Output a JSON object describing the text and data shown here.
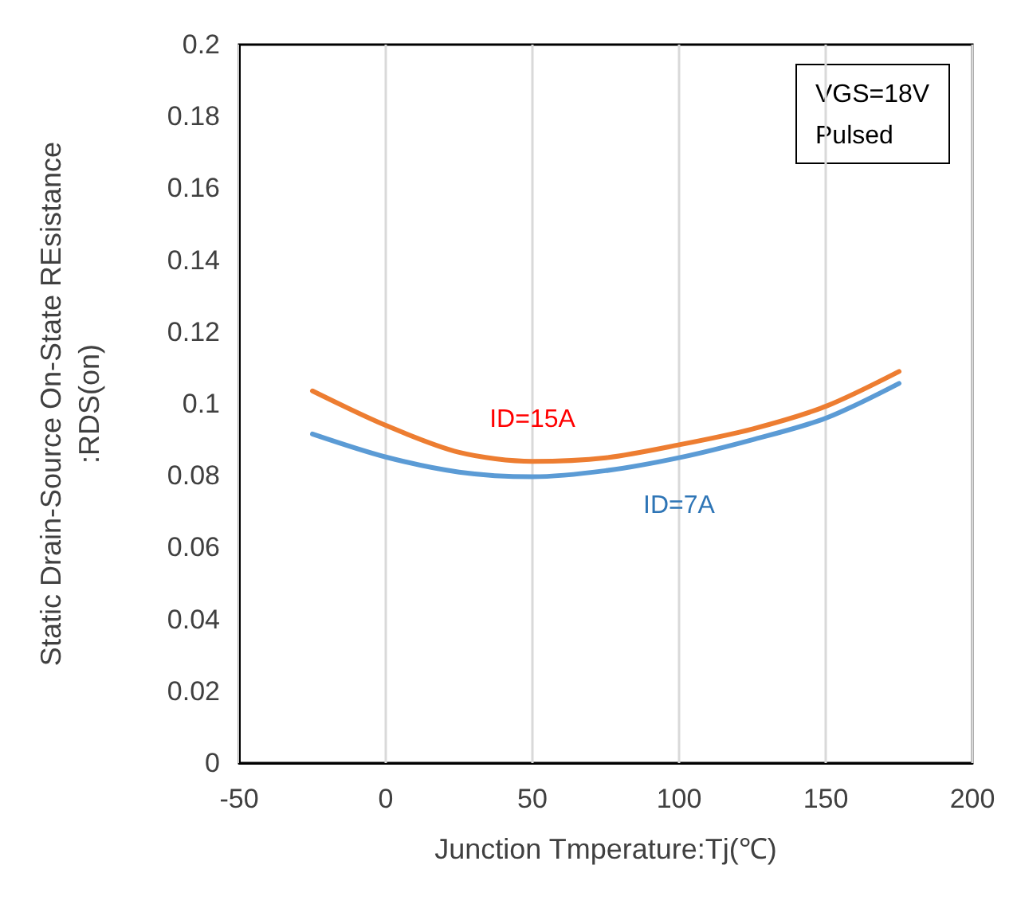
{
  "chart_data": {
    "type": "line",
    "xlabel": "Junction Tmperature:Tj(℃)",
    "ylabel": "Static Drain-Source On-State REsistance\n:RDS(on)",
    "annotations": [
      "VGS=18V\nPulsed"
    ],
    "x": [
      -25,
      0,
      25,
      50,
      75,
      100,
      125,
      150,
      175
    ],
    "series": [
      {
        "name": "ID=15A",
        "color": "#ed7d31",
        "values": [
          0.1036,
          0.094,
          0.0865,
          0.084,
          0.085,
          0.0886,
          0.093,
          0.0993,
          0.109
        ]
      },
      {
        "name": "ID=7A",
        "color": "#5b9bd5",
        "values": [
          0.0916,
          0.0852,
          0.081,
          0.0797,
          0.0814,
          0.085,
          0.09,
          0.096,
          0.1057
        ]
      }
    ],
    "xlim": [
      -50,
      200
    ],
    "xticks": [
      -50,
      0,
      50,
      100,
      150,
      200
    ],
    "ylim": [
      0,
      0.2
    ],
    "yticks": [
      0,
      0.02,
      0.04,
      0.06,
      0.08,
      0.1,
      0.12,
      0.14,
      0.16,
      0.18,
      0.2
    ],
    "grid": "x",
    "legend": false,
    "marker": "none",
    "line_style": "solid"
  }
}
